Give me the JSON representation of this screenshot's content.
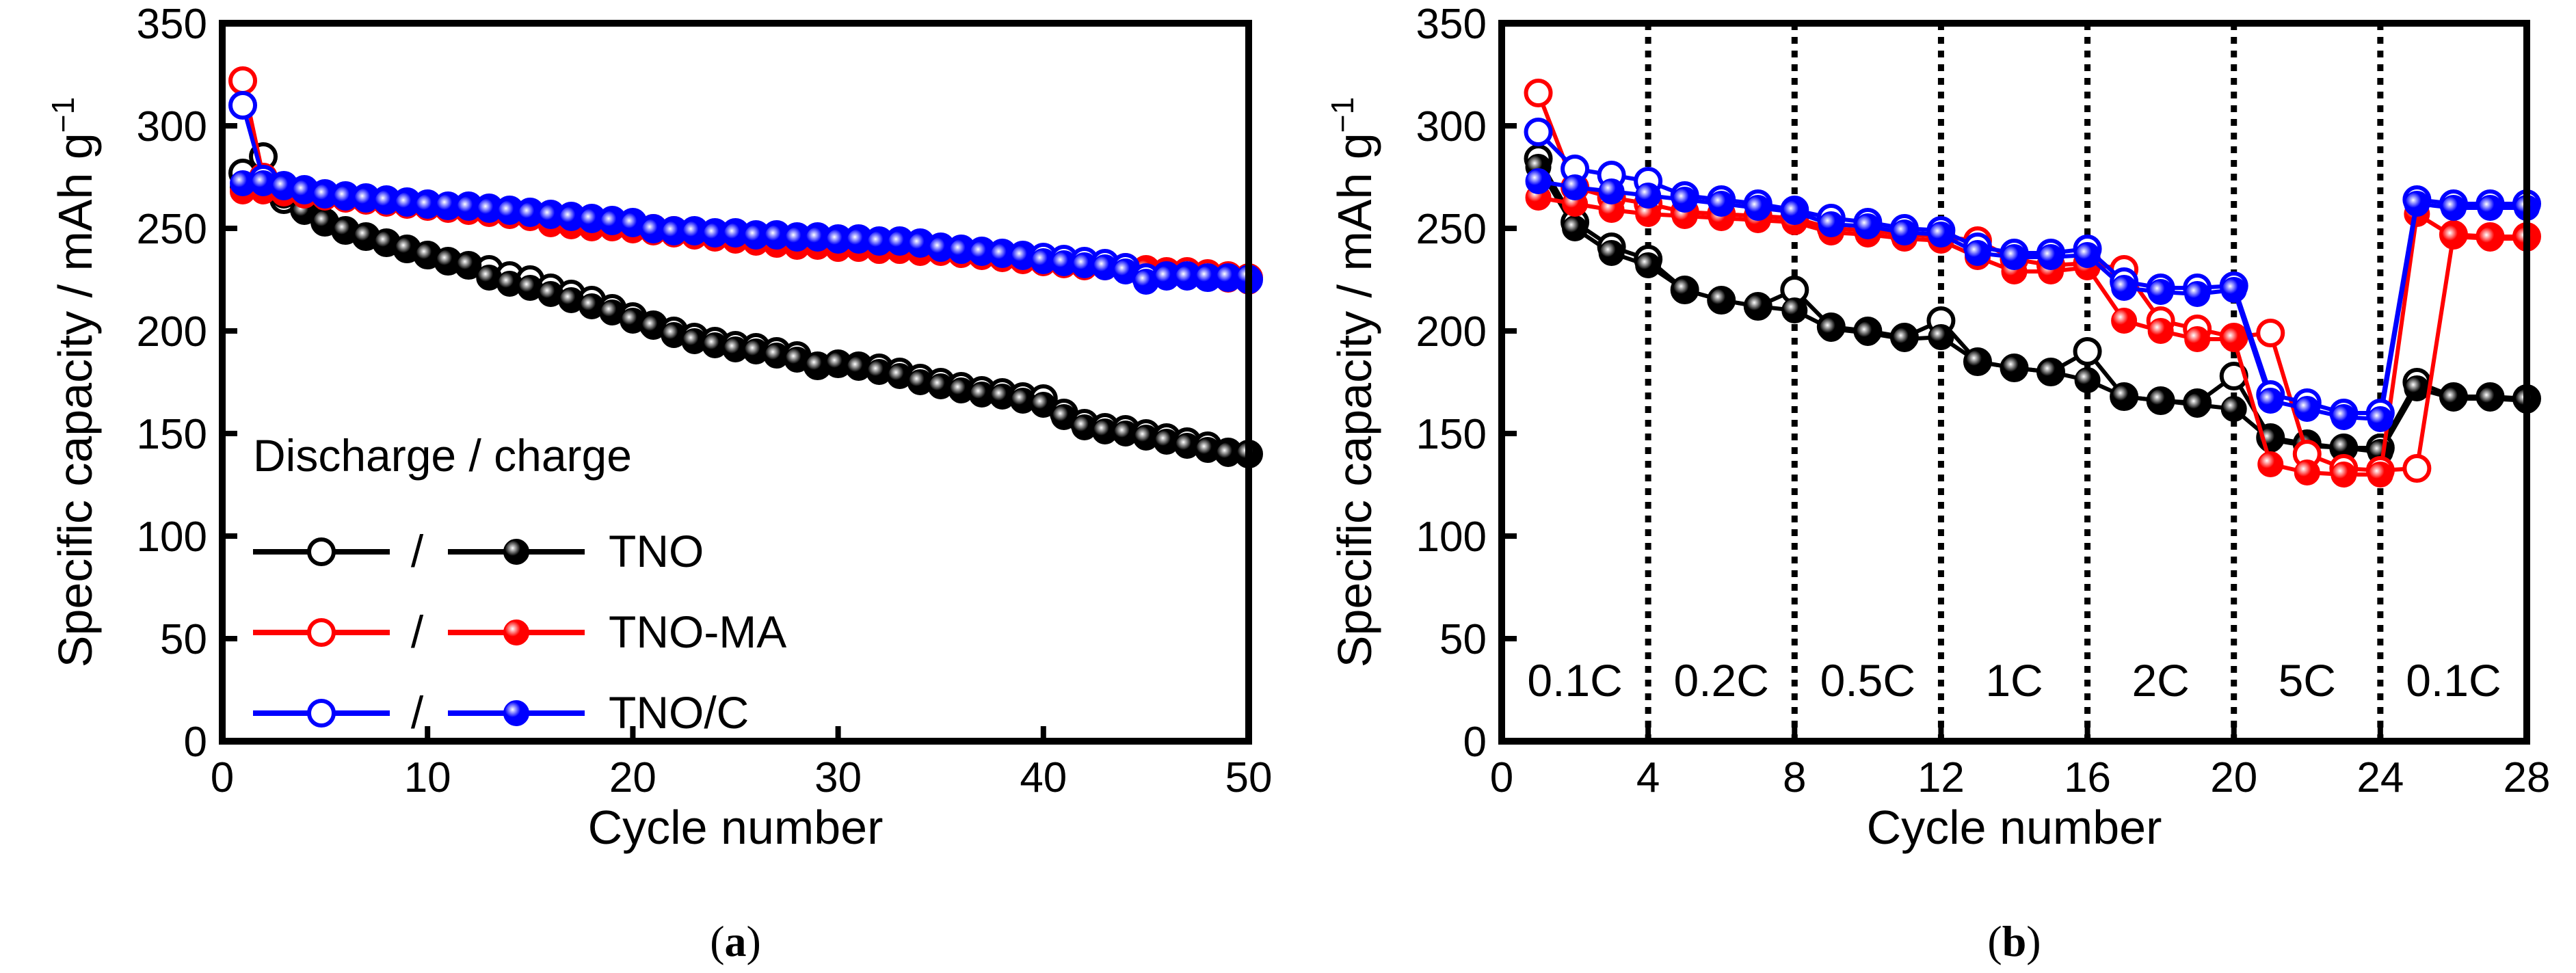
{
  "colors": {
    "TNO": "#000000",
    "TNO-MA": "#ff0000",
    "TNO/C": "#0000ff",
    "marker_highlight": "#ffffff"
  },
  "chart_data": [
    {
      "type": "line",
      "panel": "a",
      "caption": "a",
      "xlabel": "Cycle number",
      "ylabel": "Specific capacity / mAh g",
      "ylabel_superscript": "−1",
      "xlim": [
        0,
        50
      ],
      "ylim": [
        0,
        350
      ],
      "xticks": [
        "0",
        "10",
        "20",
        "30",
        "40",
        "50"
      ],
      "yticks": [
        "0",
        "50",
        "100",
        "150",
        "200",
        "250",
        "300",
        "350"
      ],
      "grid": false,
      "legend": {
        "placement": "lower-left",
        "title": "Discharge / charge",
        "separator": "/",
        "entries": [
          "TNO",
          "TNO-MA",
          "TNO/C"
        ]
      },
      "series": [
        {
          "name": "TNO",
          "x": [
            1,
            2,
            3,
            4,
            5,
            6,
            7,
            8,
            9,
            10,
            11,
            12,
            13,
            14,
            15,
            16,
            17,
            18,
            19,
            20,
            21,
            22,
            23,
            24,
            25,
            26,
            27,
            28,
            29,
            30,
            31,
            32,
            33,
            34,
            35,
            36,
            37,
            38,
            39,
            40,
            41,
            42,
            43,
            44,
            45,
            46,
            47,
            48,
            49,
            50
          ],
          "discharge": [
            277,
            285,
            264,
            259,
            253,
            249,
            246,
            243,
            240,
            237,
            234,
            232,
            230,
            227,
            225,
            221,
            218,
            215,
            211,
            207,
            203,
            200,
            197,
            195,
            193,
            192,
            190,
            188,
            183,
            184,
            183,
            182,
            180,
            177,
            175,
            173,
            171,
            170,
            168,
            167,
            160,
            155,
            153,
            152,
            150,
            148,
            146,
            144,
            141,
            140
          ],
          "charge": [
            270,
            272,
            266,
            258,
            253,
            249,
            246,
            243,
            240,
            237,
            234,
            232,
            226,
            223,
            221,
            218,
            215,
            212,
            209,
            205,
            202,
            198,
            195,
            193,
            191,
            190,
            188,
            186,
            183,
            184,
            182,
            180,
            178,
            175,
            173,
            171,
            169,
            168,
            166,
            164,
            158,
            153,
            151,
            150,
            148,
            146,
            144,
            142,
            140,
            140
          ]
        },
        {
          "name": "TNO-MA",
          "x": [
            1,
            2,
            3,
            4,
            5,
            6,
            7,
            8,
            9,
            10,
            11,
            12,
            13,
            14,
            15,
            16,
            17,
            18,
            19,
            20,
            21,
            22,
            23,
            24,
            25,
            26,
            27,
            28,
            29,
            30,
            31,
            32,
            33,
            34,
            35,
            36,
            37,
            38,
            39,
            40,
            41,
            42,
            43,
            44,
            45,
            46,
            47,
            48,
            49,
            50
          ],
          "discharge": [
            322,
            275,
            270,
            268,
            266,
            265,
            264,
            263,
            262,
            261,
            260,
            259,
            258,
            257,
            256,
            255,
            254,
            253,
            252,
            251,
            250,
            249,
            248,
            247,
            246,
            245,
            244,
            243,
            242,
            242,
            241,
            240,
            240,
            239,
            239,
            238,
            237,
            236,
            235,
            234,
            233,
            232,
            232,
            231,
            230,
            229,
            229,
            228,
            227,
            226
          ],
          "charge": [
            268,
            268,
            267,
            266,
            265,
            264,
            263,
            262,
            261,
            260,
            259,
            258,
            257,
            256,
            255,
            252,
            251,
            250,
            250,
            249,
            248,
            247,
            246,
            245,
            244,
            243,
            242,
            241,
            241,
            240,
            240,
            239,
            239,
            238,
            238,
            237,
            236,
            235,
            234,
            233,
            232,
            231,
            231,
            230,
            229,
            228,
            227,
            226,
            225,
            224
          ]
        },
        {
          "name": "TNO/C",
          "x": [
            1,
            2,
            3,
            4,
            5,
            6,
            7,
            8,
            9,
            10,
            11,
            12,
            13,
            14,
            15,
            16,
            17,
            18,
            19,
            20,
            21,
            22,
            23,
            24,
            25,
            26,
            27,
            28,
            29,
            30,
            31,
            32,
            33,
            34,
            35,
            36,
            37,
            38,
            39,
            40,
            41,
            42,
            43,
            44,
            45,
            46,
            47,
            48,
            49,
            50
          ],
          "discharge": [
            310,
            274,
            271,
            269,
            267,
            266,
            265,
            264,
            263,
            262,
            261,
            261,
            260,
            259,
            258,
            257,
            256,
            255,
            254,
            253,
            250,
            249,
            249,
            248,
            248,
            247,
            247,
            246,
            246,
            245,
            245,
            244,
            244,
            243,
            241,
            240,
            239,
            238,
            237,
            236,
            235,
            234,
            233,
            231,
            226,
            227,
            227,
            226,
            226,
            225
          ],
          "charge": [
            272,
            272,
            270,
            268,
            266,
            265,
            264,
            263,
            262,
            261,
            261,
            260,
            259,
            258,
            257,
            256,
            255,
            254,
            253,
            252,
            249,
            248,
            248,
            247,
            247,
            246,
            246,
            245,
            245,
            244,
            244,
            243,
            243,
            242,
            240,
            239,
            238,
            237,
            236,
            234,
            233,
            232,
            231,
            229,
            224,
            226,
            226,
            226,
            226,
            226
          ]
        }
      ]
    },
    {
      "type": "line",
      "panel": "b",
      "caption": "b",
      "xlabel": "Cycle number",
      "ylabel": "Specific capacity / mAh g",
      "ylabel_superscript": "−1",
      "xlim": [
        0,
        28
      ],
      "ylim": [
        0,
        350
      ],
      "xticks": [
        "0",
        "4",
        "8",
        "12",
        "16",
        "20",
        "24",
        "28"
      ],
      "yticks": [
        "0",
        "50",
        "100",
        "150",
        "200",
        "250",
        "300",
        "350"
      ],
      "grid": false,
      "rate_dividers_x": [
        4,
        8,
        12,
        16,
        20,
        24
      ],
      "rate_segments": [
        {
          "label": "0.1C",
          "x_center": 2
        },
        {
          "label": "0.2C",
          "x_center": 6
        },
        {
          "label": "0.5C",
          "x_center": 10
        },
        {
          "label": "1C",
          "x_center": 14
        },
        {
          "label": "2C",
          "x_center": 18
        },
        {
          "label": "5C",
          "x_center": 22
        },
        {
          "label": "0.1C",
          "x_center": 26
        }
      ],
      "series": [
        {
          "name": "TNO",
          "x": [
            1,
            2,
            3,
            4,
            5,
            6,
            7,
            8,
            9,
            10,
            11,
            12,
            13,
            14,
            15,
            16,
            17,
            18,
            19,
            20,
            21,
            22,
            23,
            24,
            25,
            26,
            27,
            28
          ],
          "discharge": [
            284,
            253,
            241,
            235,
            220,
            215,
            212,
            220,
            202,
            200,
            197,
            205,
            185,
            182,
            180,
            190,
            168,
            166,
            165,
            178,
            148,
            145,
            143,
            143,
            175,
            168,
            168,
            167
          ],
          "charge": [
            280,
            250,
            238,
            232,
            220,
            215,
            212,
            210,
            201,
            199,
            196,
            197,
            185,
            182,
            180,
            176,
            168,
            166,
            164,
            162,
            147,
            144,
            143,
            141,
            172,
            167,
            167,
            166
          ]
        },
        {
          "name": "TNO-MA",
          "x": [
            1,
            2,
            3,
            4,
            5,
            6,
            7,
            8,
            9,
            10,
            11,
            12,
            13,
            14,
            15,
            16,
            17,
            18,
            19,
            20,
            21,
            22,
            23,
            24,
            25,
            26,
            27,
            28
          ],
          "discharge": [
            316,
            270,
            265,
            262,
            258,
            257,
            256,
            255,
            250,
            249,
            247,
            246,
            244,
            235,
            232,
            233,
            230,
            205,
            201,
            197,
            199,
            140,
            133,
            132,
            133,
            247,
            246,
            246
          ],
          "charge": [
            265,
            262,
            259,
            257,
            256,
            255,
            254,
            253,
            248,
            247,
            245,
            244,
            236,
            229,
            229,
            231,
            205,
            200,
            196,
            196,
            135,
            131,
            130,
            130,
            257,
            246,
            245,
            245
          ]
        },
        {
          "name": "TNO/C",
          "x": [
            1,
            2,
            3,
            4,
            5,
            6,
            7,
            8,
            9,
            10,
            11,
            12,
            13,
            14,
            15,
            16,
            17,
            18,
            19,
            20,
            21,
            22,
            23,
            24,
            25,
            26,
            27,
            28
          ],
          "discharge": [
            297,
            279,
            276,
            273,
            266,
            264,
            262,
            259,
            255,
            253,
            250,
            249,
            241,
            238,
            238,
            240,
            224,
            221,
            221,
            222,
            169,
            165,
            160,
            160,
            264,
            262,
            262,
            262
          ],
          "charge": [
            273,
            270,
            268,
            266,
            264,
            262,
            260,
            258,
            252,
            251,
            248,
            247,
            238,
            236,
            236,
            237,
            221,
            219,
            218,
            220,
            166,
            162,
            158,
            157,
            262,
            260,
            260,
            260
          ]
        }
      ]
    }
  ]
}
